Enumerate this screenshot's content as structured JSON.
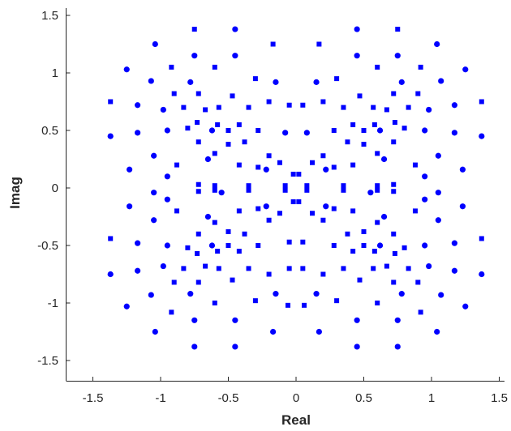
{
  "chart_data": {
    "type": "scatter",
    "title": "",
    "xlabel": "Real",
    "ylabel": "Imag",
    "xlim": [
      -1.55,
      1.55
    ],
    "ylim": [
      -1.6,
      1.55
    ],
    "xticks": [
      -1.5,
      -1,
      -0.5,
      0,
      0.5,
      1,
      1.5
    ],
    "xtick_labels": [
      "-1.5",
      "-1",
      "-0.5",
      "0",
      "0.5",
      "1",
      "1.5"
    ],
    "yticks": [
      -1.5,
      -1,
      -0.5,
      0,
      0.5,
      1,
      1.5
    ],
    "ytick_labels": [
      "-1.5",
      "-1",
      "-0.5",
      "0",
      "0.5",
      "1",
      "1.5"
    ],
    "grid": false,
    "marker_color": "#0000ff",
    "series": [
      {
        "marker": "square",
        "points": [
          [
            -0.75,
            1.38
          ],
          [
            0.75,
            1.38
          ],
          [
            -0.17,
            1.25
          ],
          [
            0.17,
            1.25
          ],
          [
            -0.92,
            1.05
          ],
          [
            -0.6,
            1.05
          ],
          [
            -0.3,
            0.95
          ],
          [
            0.3,
            0.95
          ],
          [
            0.6,
            1.05
          ],
          [
            0.92,
            1.05
          ],
          [
            -0.9,
            0.82
          ],
          [
            -0.72,
            0.82
          ],
          [
            -0.47,
            0.8
          ],
          [
            -0.2,
            0.75
          ],
          [
            0.2,
            0.75
          ],
          [
            0.47,
            0.8
          ],
          [
            0.72,
            0.82
          ],
          [
            0.9,
            0.82
          ],
          [
            -1.37,
            0.75
          ],
          [
            1.37,
            0.75
          ],
          [
            -0.83,
            0.7
          ],
          [
            -0.67,
            0.68
          ],
          [
            -0.57,
            0.7
          ],
          [
            -0.35,
            0.7
          ],
          [
            0.35,
            0.7
          ],
          [
            0.57,
            0.7
          ],
          [
            0.67,
            0.68
          ],
          [
            0.83,
            0.7
          ],
          [
            -0.05,
            0.72
          ],
          [
            0.05,
            0.72
          ],
          [
            -0.73,
            0.57
          ],
          [
            -0.58,
            0.55
          ],
          [
            -0.42,
            0.55
          ],
          [
            0.42,
            0.55
          ],
          [
            0.58,
            0.55
          ],
          [
            0.73,
            0.57
          ],
          [
            -0.8,
            0.52
          ],
          [
            -0.5,
            0.5
          ],
          [
            -0.28,
            0.5
          ],
          [
            0.28,
            0.5
          ],
          [
            0.5,
            0.5
          ],
          [
            0.8,
            0.52
          ],
          [
            -0.72,
            0.4
          ],
          [
            -0.5,
            0.38
          ],
          [
            -0.38,
            0.4
          ],
          [
            0.38,
            0.4
          ],
          [
            0.5,
            0.38
          ],
          [
            0.72,
            0.4
          ],
          [
            -0.6,
            0.3
          ],
          [
            -0.2,
            0.28
          ],
          [
            -0.12,
            0.22
          ],
          [
            0.12,
            0.22
          ],
          [
            0.2,
            0.28
          ],
          [
            0.6,
            0.3
          ],
          [
            -0.88,
            0.2
          ],
          [
            -0.42,
            0.2
          ],
          [
            -0.28,
            0.18
          ],
          [
            0.28,
            0.18
          ],
          [
            0.42,
            0.2
          ],
          [
            0.88,
            0.2
          ],
          [
            -0.02,
            0.12
          ],
          [
            0.02,
            0.12
          ],
          [
            -0.72,
            0.03
          ],
          [
            -0.6,
            0.02
          ],
          [
            -0.35,
            0.02
          ],
          [
            -0.08,
            0.02
          ],
          [
            0.08,
            0.02
          ],
          [
            0.35,
            0.02
          ],
          [
            0.6,
            0.02
          ],
          [
            0.72,
            0.03
          ],
          [
            -0.72,
            -0.03
          ],
          [
            -0.6,
            -0.02
          ],
          [
            -0.35,
            -0.02
          ],
          [
            -0.08,
            -0.02
          ],
          [
            0.08,
            -0.02
          ],
          [
            0.35,
            -0.02
          ],
          [
            0.6,
            -0.02
          ],
          [
            0.72,
            -0.03
          ],
          [
            -0.02,
            -0.12
          ],
          [
            0.02,
            -0.12
          ],
          [
            -0.88,
            -0.2
          ],
          [
            -0.42,
            -0.2
          ],
          [
            -0.28,
            -0.18
          ],
          [
            0.28,
            -0.18
          ],
          [
            0.42,
            -0.2
          ],
          [
            0.88,
            -0.2
          ],
          [
            -0.6,
            -0.3
          ],
          [
            -0.2,
            -0.28
          ],
          [
            -0.12,
            -0.22
          ],
          [
            0.12,
            -0.22
          ],
          [
            0.2,
            -0.28
          ],
          [
            0.6,
            -0.3
          ],
          [
            -0.72,
            -0.4
          ],
          [
            -0.5,
            -0.38
          ],
          [
            -0.38,
            -0.4
          ],
          [
            0.38,
            -0.4
          ],
          [
            0.5,
            -0.38
          ],
          [
            0.72,
            -0.4
          ],
          [
            -1.37,
            -0.44
          ],
          [
            1.37,
            -0.44
          ],
          [
            -0.8,
            -0.52
          ],
          [
            -0.5,
            -0.5
          ],
          [
            -0.28,
            -0.5
          ],
          [
            -0.05,
            -0.47
          ],
          [
            0.05,
            -0.47
          ],
          [
            0.28,
            -0.5
          ],
          [
            0.5,
            -0.5
          ],
          [
            0.8,
            -0.52
          ],
          [
            -0.73,
            -0.57
          ],
          [
            -0.58,
            -0.55
          ],
          [
            -0.42,
            -0.55
          ],
          [
            0.42,
            -0.55
          ],
          [
            0.58,
            -0.55
          ],
          [
            0.73,
            -0.57
          ],
          [
            -0.83,
            -0.7
          ],
          [
            -0.67,
            -0.68
          ],
          [
            -0.57,
            -0.7
          ],
          [
            -0.35,
            -0.7
          ],
          [
            -0.05,
            -0.7
          ],
          [
            0.05,
            -0.7
          ],
          [
            0.35,
            -0.7
          ],
          [
            0.57,
            -0.7
          ],
          [
            0.67,
            -0.68
          ],
          [
            0.83,
            -0.7
          ],
          [
            -0.9,
            -0.82
          ],
          [
            -0.72,
            -0.82
          ],
          [
            -0.47,
            -0.8
          ],
          [
            -0.2,
            -0.75
          ],
          [
            0.2,
            -0.75
          ],
          [
            0.47,
            -0.8
          ],
          [
            0.72,
            -0.82
          ],
          [
            0.9,
            -0.82
          ],
          [
            -0.92,
            -1.08
          ],
          [
            -0.6,
            -1.0
          ],
          [
            -0.3,
            -0.98
          ],
          [
            -0.06,
            -1.02
          ],
          [
            0.06,
            -1.02
          ],
          [
            0.3,
            -0.98
          ],
          [
            0.6,
            -1.0
          ],
          [
            0.92,
            -1.08
          ]
        ]
      },
      {
        "marker": "circle",
        "points": [
          [
            -0.45,
            1.38
          ],
          [
            0.45,
            1.38
          ],
          [
            -1.04,
            1.25
          ],
          [
            1.04,
            1.25
          ],
          [
            -1.25,
            1.03
          ],
          [
            1.25,
            1.03
          ],
          [
            -1.07,
            0.93
          ],
          [
            1.07,
            0.93
          ],
          [
            -0.15,
            0.92
          ],
          [
            0.15,
            0.92
          ],
          [
            -0.78,
            0.92
          ],
          [
            0.78,
            0.92
          ],
          [
            -1.17,
            0.72
          ],
          [
            1.17,
            0.72
          ],
          [
            -0.98,
            0.68
          ],
          [
            0.98,
            0.68
          ],
          [
            -1.37,
            0.45
          ],
          [
            1.37,
            0.45
          ],
          [
            -1.17,
            0.48
          ],
          [
            1.17,
            0.48
          ],
          [
            -0.95,
            0.5
          ],
          [
            0.95,
            0.5
          ],
          [
            -0.62,
            0.5
          ],
          [
            0.62,
            0.5
          ],
          [
            -0.08,
            0.48
          ],
          [
            0.08,
            0.48
          ],
          [
            -1.05,
            0.28
          ],
          [
            1.05,
            0.28
          ],
          [
            -0.65,
            0.25
          ],
          [
            0.65,
            0.25
          ],
          [
            -1.23,
            0.16
          ],
          [
            1.23,
            0.16
          ],
          [
            -0.95,
            0.1
          ],
          [
            0.95,
            0.1
          ],
          [
            -0.22,
            0.16
          ],
          [
            0.22,
            0.16
          ],
          [
            -1.05,
            -0.04
          ],
          [
            1.05,
            -0.04
          ],
          [
            -0.55,
            -0.04
          ],
          [
            0.55,
            -0.04
          ],
          [
            -1.23,
            -0.16
          ],
          [
            1.23,
            -0.16
          ],
          [
            -0.95,
            -0.1
          ],
          [
            0.95,
            -0.1
          ],
          [
            -0.22,
            -0.16
          ],
          [
            0.22,
            -0.16
          ],
          [
            -1.05,
            -0.28
          ],
          [
            1.05,
            -0.28
          ],
          [
            -0.65,
            -0.25
          ],
          [
            0.65,
            -0.25
          ],
          [
            -1.17,
            -0.48
          ],
          [
            1.17,
            -0.48
          ],
          [
            -0.95,
            -0.5
          ],
          [
            0.95,
            -0.5
          ],
          [
            -0.62,
            -0.5
          ],
          [
            0.62,
            -0.5
          ],
          [
            -1.37,
            -0.75
          ],
          [
            1.37,
            -0.75
          ],
          [
            -1.17,
            -0.72
          ],
          [
            1.17,
            -0.72
          ],
          [
            -0.98,
            -0.68
          ],
          [
            0.98,
            -0.68
          ],
          [
            -1.07,
            -0.93
          ],
          [
            1.07,
            -0.93
          ],
          [
            -0.78,
            -0.92
          ],
          [
            0.78,
            -0.92
          ],
          [
            -0.15,
            -0.92
          ],
          [
            0.15,
            -0.92
          ],
          [
            -1.25,
            -1.03
          ],
          [
            1.25,
            -1.03
          ],
          [
            -1.04,
            -1.25
          ],
          [
            1.04,
            -1.25
          ],
          [
            -0.75,
            -1.38
          ],
          [
            0.75,
            -1.38
          ],
          [
            -0.45,
            -1.38
          ],
          [
            0.45,
            -1.38
          ],
          [
            -0.75,
            -1.15
          ],
          [
            0.75,
            -1.15
          ],
          [
            -0.45,
            -1.15
          ],
          [
            0.45,
            -1.15
          ],
          [
            -0.17,
            -1.25
          ],
          [
            0.17,
            -1.25
          ],
          [
            -0.75,
            1.15
          ],
          [
            0.75,
            1.15
          ],
          [
            -0.45,
            1.15
          ],
          [
            0.45,
            1.15
          ]
        ]
      }
    ]
  }
}
